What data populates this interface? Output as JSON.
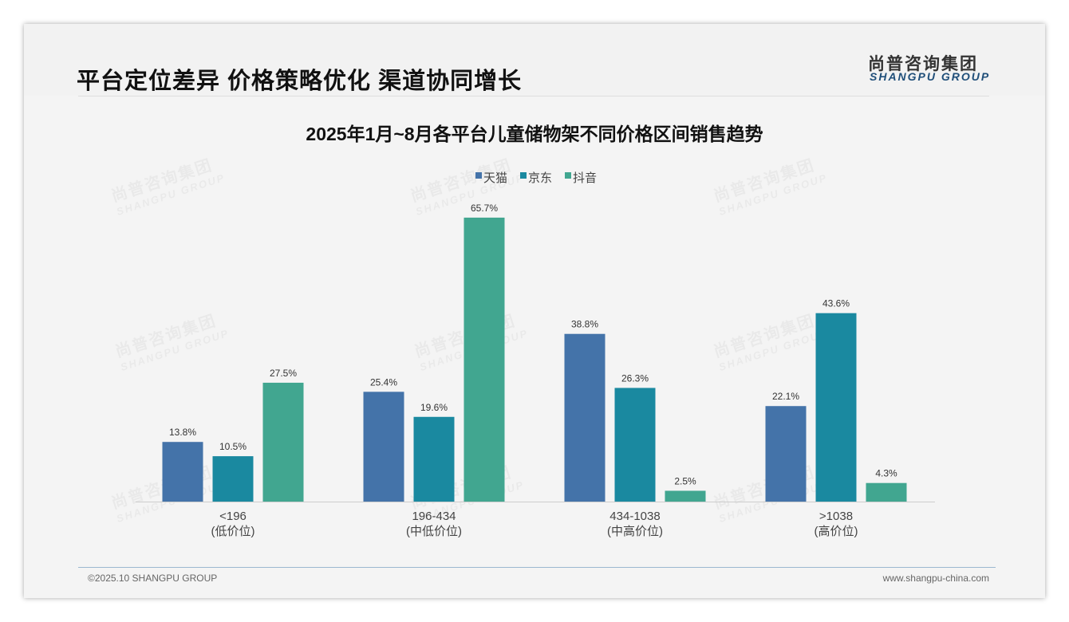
{
  "header": {
    "title": "平台定位差异 价格策略优化 渠道协同增长",
    "logo_cn": "尚普咨询集团",
    "logo_en": "SHANGPU GROUP"
  },
  "footer": {
    "copyright": "©2025.10 SHANGPU GROUP",
    "website": "www.shangpu-china.com"
  },
  "colors": {
    "天猫": "#4473a9",
    "京东": "#1a89a0",
    "抖音": "#41a690"
  },
  "chart_data": {
    "type": "bar",
    "title": "2025年1月~8月各平台儿童储物架不同价格区间销售趋势",
    "categories": [
      "<196",
      "196-434",
      "434-1038",
      ">1038"
    ],
    "category_sublabels": [
      "(低价位)",
      "(中低价位)",
      "(中高价位)",
      "(高价位)"
    ],
    "series": [
      {
        "name": "天猫",
        "values": [
          13.8,
          25.4,
          38.8,
          22.1
        ]
      },
      {
        "name": "京东",
        "values": [
          10.5,
          19.6,
          26.3,
          43.6
        ]
      },
      {
        "name": "抖音",
        "values": [
          27.5,
          65.7,
          2.5,
          4.3
        ]
      }
    ],
    "unit": "%",
    "legend": "top-center",
    "grid": false,
    "ylim": [
      0,
      70
    ]
  }
}
